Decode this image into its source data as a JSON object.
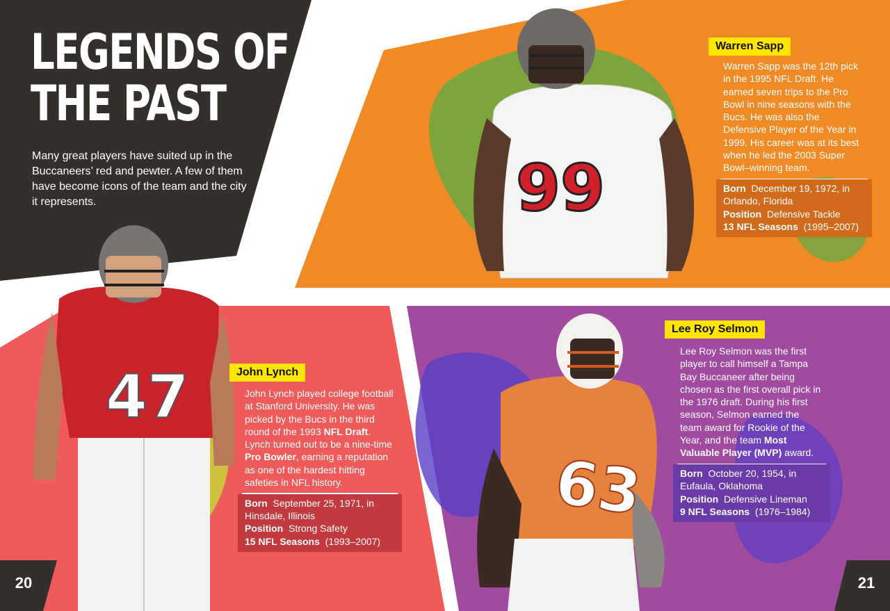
{
  "page": {
    "title_line1": "LEGENDS OF",
    "title_line2": "THE PAST",
    "intro": "Many great players have suited up in the Buccaneers’ red and pewter. A few of them have become icons of the team and the city it represents.",
    "page_left": "20",
    "page_right": "21"
  },
  "colors": {
    "dark_panel": "#33302c",
    "sapp_bg": "#f08a24",
    "sapp_accent": "#6aa842",
    "lynch_bg": "#ef5a5a",
    "lynch_accent": "#c8d43a",
    "selmon_bg": "#a04aa0",
    "selmon_accent": "#5a3ec8",
    "name_tag": "#ffe600"
  },
  "players": {
    "sapp": {
      "name": "Warren Sapp",
      "desc": "Warren Sapp was the 12th pick in the 1995 NFL Draft. He earned seven trips to the Pro Bowl in nine seasons with the Bucs. He was also the Defensive Player of the Year in 1999. His career was at its best when he led the 2003 Super Bowl–winning team.",
      "born_label": "Born",
      "born": "December 19, 1972, in Orlando, Florida",
      "position_label": "Position",
      "position": "Defensive Tackle",
      "seasons_label": "13 NFL Seasons",
      "seasons": "(1995–2007)",
      "jersey": "99"
    },
    "lynch": {
      "name": "John Lynch",
      "desc_1": "John Lynch played college football at Stanford University. He was picked by the Bucs in the third round of the 1993 ",
      "desc_bold_1": "NFL Draft",
      "desc_2": ". Lynch turned out to be a nine-time ",
      "desc_bold_2": "Pro Bowler",
      "desc_3": ", earning a reputation as one of the hardest hitting safeties in NFL history.",
      "born_label": "Born",
      "born": "September 25, 1971, in Hinsdale, Illinois",
      "position_label": "Position",
      "position": "Strong Safety",
      "seasons_label": "15 NFL Seasons",
      "seasons": "(1993–2007)",
      "jersey": "47"
    },
    "selmon": {
      "name": "Lee Roy Selmon",
      "desc_1": "Lee Roy Selmon was the first player to call himself a Tampa Bay Buccaneer after being chosen as the first overall pick in the 1976 draft. During his first season, Selmon earned the team award for Rookie of the Year, and the team ",
      "desc_bold_1": "Most Valuable Player (MVP)",
      "desc_2": " award.",
      "born_label": "Born",
      "born": "October 20, 1954, in Eufaula, Oklahoma",
      "position_label": "Position",
      "position": "Defensive Lineman",
      "seasons_label": "9 NFL Seasons",
      "seasons": "(1976–1984)",
      "jersey": "63"
    }
  }
}
